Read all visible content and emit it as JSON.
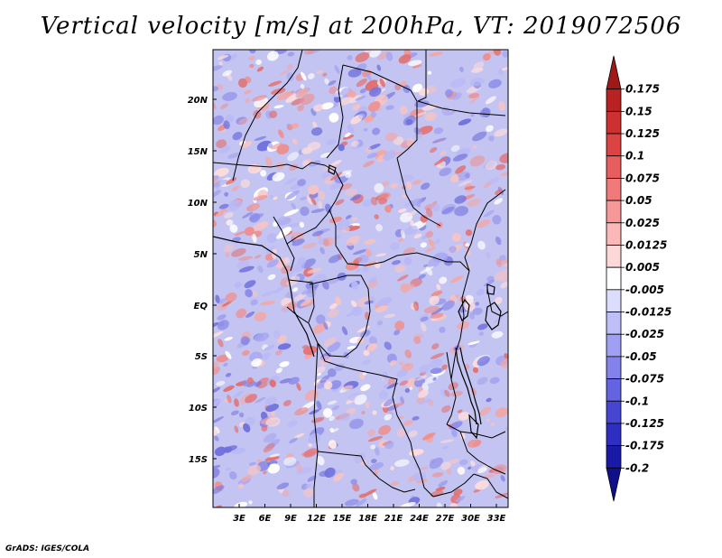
{
  "title": "Vertical velocity [m/s] at 200hPa, VT: 2019072506",
  "credit": "GrADS: IGES/COLA",
  "lat_ticks": [
    "20N",
    "15N",
    "10N",
    "5N",
    "EQ",
    "5S",
    "10S",
    "15S"
  ],
  "lon_ticks": [
    "3E",
    "6E",
    "9E",
    "12E",
    "15E",
    "18E",
    "21E",
    "24E",
    "27E",
    "30E",
    "33E"
  ],
  "colorbar": {
    "labels": [
      "0.175",
      "0.15",
      "0.125",
      "0.1",
      "0.075",
      "0.05",
      "0.025",
      "0.0125",
      "0.005",
      "-0.005",
      "-0.0125",
      "-0.025",
      "-0.05",
      "-0.075",
      "-0.1",
      "-0.125",
      "-0.175",
      "-0.2"
    ],
    "colors": [
      "#a01818",
      "#b82222",
      "#cc3030",
      "#dc4444",
      "#e85e5e",
      "#f07a7a",
      "#f69898",
      "#fab8b8",
      "#fcd8d8",
      "#ffffff",
      "#dcdcfc",
      "#bebef8",
      "#a0a0f2",
      "#8282ea",
      "#6464e0",
      "#4646d2",
      "#2e2ec2",
      "#1a1aa8",
      "#10108c"
    ]
  }
}
